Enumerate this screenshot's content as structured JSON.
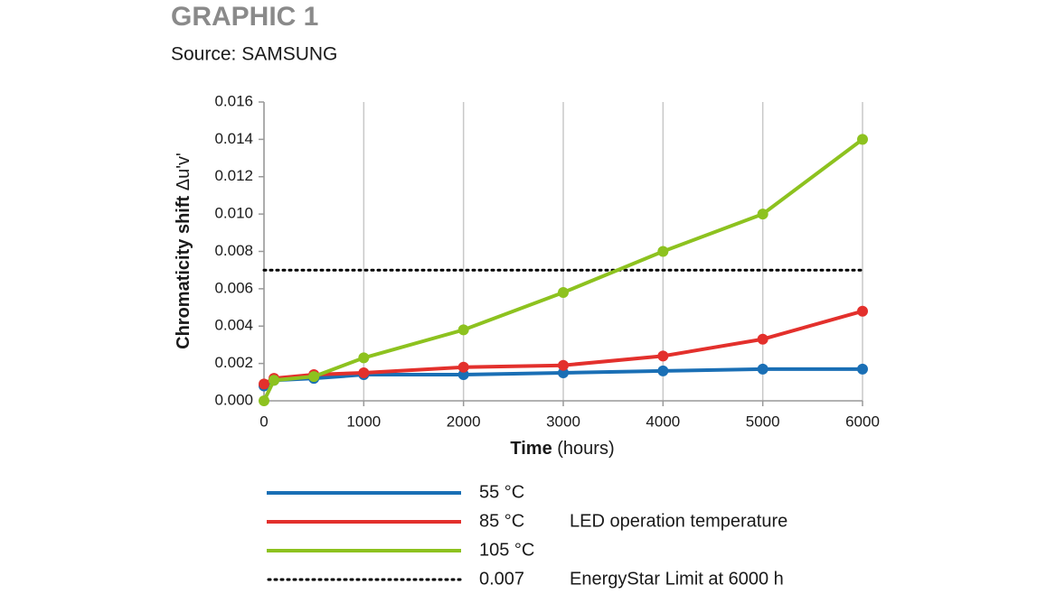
{
  "chart_data": {
    "type": "line",
    "title": "GRAPHIC 1",
    "subtitle": "Source: SAMSUNG",
    "ylabel": [
      "Chromaticity shift",
      "Δu'v'"
    ],
    "xlabel": [
      "Time",
      "(hours)"
    ],
    "x": [
      0,
      100,
      500,
      1000,
      2000,
      3000,
      4000,
      5000,
      6000
    ],
    "series": [
      {
        "name": "55 °C",
        "color": "#1a6fb5",
        "values": [
          0.0008,
          0.0011,
          0.0012,
          0.0014,
          0.0014,
          0.0015,
          0.0016,
          0.0017,
          0.0017
        ]
      },
      {
        "name": "85 °C",
        "color": "#e3302c",
        "values": [
          0.0009,
          0.0012,
          0.0014,
          0.0015,
          0.0018,
          0.0019,
          0.0024,
          0.0033,
          0.0048
        ]
      },
      {
        "name": "105 °C",
        "color": "#8dc21f",
        "values": [
          0.0,
          0.0011,
          0.0013,
          0.0023,
          0.0038,
          0.0058,
          0.008,
          0.01,
          0.014
        ]
      }
    ],
    "legend_group_label": "LED operation temperature",
    "limit": {
      "value": 0.007,
      "description": "EnergyStar Limit at 6000 h",
      "color": "#000000"
    },
    "xlim": [
      0,
      6000
    ],
    "xticks": [
      0,
      1000,
      2000,
      3000,
      4000,
      5000,
      6000
    ],
    "ylim": [
      0,
      0.016
    ],
    "yticks": [
      {
        "value": 0,
        "label": "0.000"
      },
      0.002,
      0.004,
      0.006,
      0.008,
      {
        "value": 0.01,
        "label": "0.010"
      },
      0.012,
      0.014,
      0.016
    ],
    "grid": true
  }
}
